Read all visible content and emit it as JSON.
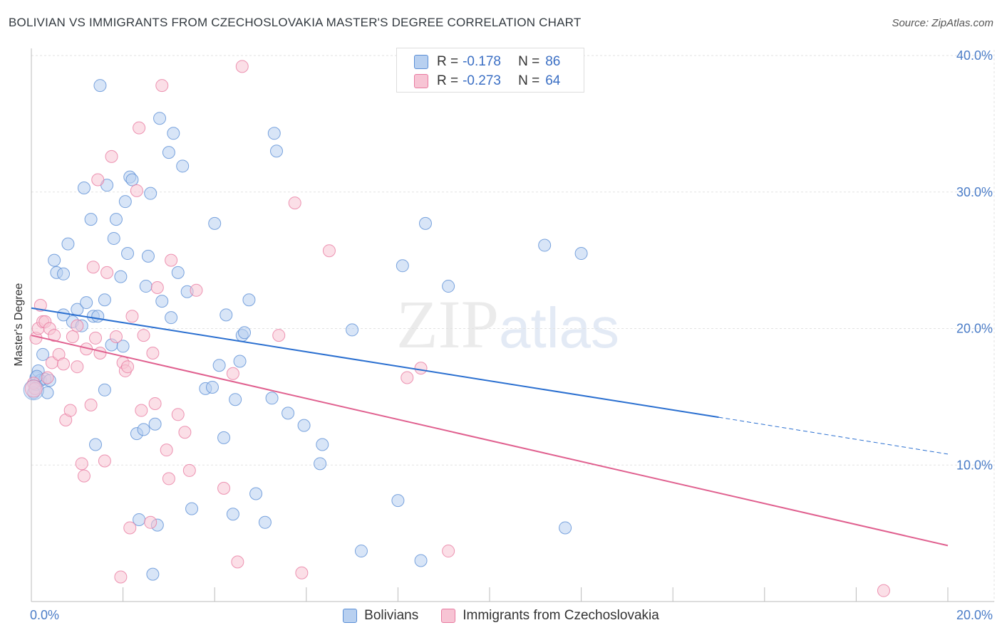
{
  "title": "BOLIVIAN VS IMMIGRANTS FROM CZECHOSLOVAKIA MASTER'S DEGREE CORRELATION CHART",
  "source": "Source: ZipAtlas.com",
  "watermark": {
    "zip": "ZIP",
    "atlas": "atlas"
  },
  "colors": {
    "blue": "#5b8fd6",
    "blue_fill": "#b8d0f0",
    "blue_line": "#2a6fd0",
    "pink": "#e87aa0",
    "pink_fill": "#f7c4d4",
    "pink_line": "#e0608f",
    "grid": "#e2e2e2",
    "tick_label": "#4a7cc7"
  },
  "legend": {
    "rows": [
      {
        "r_label": "R =",
        "r_value": "-0.178",
        "n_label": "N =",
        "n_value": "86"
      },
      {
        "r_label": "R =",
        "r_value": "-0.273",
        "n_label": "N =",
        "n_value": "64"
      }
    ]
  },
  "bottom_legend": [
    "Bolivians",
    "Immigrants from Czechoslovakia"
  ],
  "chart_data": {
    "type": "scatter",
    "title": "BOLIVIAN VS IMMIGRANTS FROM CZECHOSLOVAKIA MASTER'S DEGREE CORRELATION CHART",
    "xlabel": "",
    "ylabel": "Master's Degree",
    "xlim": [
      0,
      20
    ],
    "ylim": [
      0,
      40
    ],
    "x_tick_labels": [
      "0.0%",
      "20.0%"
    ],
    "y_ticks": [
      10,
      20,
      30,
      40
    ],
    "y_tick_labels": [
      "10.0%",
      "20.0%",
      "30.0%",
      "40.0%"
    ],
    "grid": true,
    "series": [
      {
        "name": "Bolivians",
        "trend": {
          "x": [
            0,
            15
          ],
          "y": [
            21.5,
            13.5
          ],
          "dashed_to": [
            20,
            10.8
          ]
        },
        "points": [
          [
            0.1,
            15.9
          ],
          [
            0.1,
            16.4
          ],
          [
            0.15,
            16.9
          ],
          [
            0.2,
            16.2
          ],
          [
            0.25,
            18.1
          ],
          [
            0.3,
            16.3
          ],
          [
            0.35,
            15.3
          ],
          [
            0.4,
            16.2
          ],
          [
            0.5,
            25
          ],
          [
            0.55,
            24.1
          ],
          [
            0.7,
            24
          ],
          [
            0.7,
            21
          ],
          [
            0.8,
            26.2
          ],
          [
            0.9,
            20.5
          ],
          [
            1,
            21.4
          ],
          [
            1.1,
            20.2
          ],
          [
            1.15,
            30.3
          ],
          [
            1.2,
            21.9
          ],
          [
            1.3,
            28
          ],
          [
            1.35,
            20.9
          ],
          [
            1.4,
            11.5
          ],
          [
            1.45,
            20.9
          ],
          [
            1.5,
            37.8
          ],
          [
            1.6,
            22.1
          ],
          [
            1.6,
            15.5
          ],
          [
            1.65,
            30.5
          ],
          [
            1.75,
            18.8
          ],
          [
            1.8,
            26.6
          ],
          [
            1.85,
            28
          ],
          [
            1.95,
            23.8
          ],
          [
            2,
            18.7
          ],
          [
            2.05,
            29.3
          ],
          [
            2.1,
            25.5
          ],
          [
            2.15,
            31.1
          ],
          [
            2.2,
            30.9
          ],
          [
            2.3,
            12.3
          ],
          [
            2.35,
            6
          ],
          [
            2.45,
            12.6
          ],
          [
            2.5,
            23.1
          ],
          [
            2.55,
            25.3
          ],
          [
            2.6,
            29.9
          ],
          [
            2.65,
            2
          ],
          [
            2.7,
            13
          ],
          [
            2.75,
            5.6
          ],
          [
            2.8,
            35.4
          ],
          [
            2.85,
            22
          ],
          [
            3,
            32.9
          ],
          [
            3.05,
            20.8
          ],
          [
            3.1,
            34.3
          ],
          [
            3.2,
            24.1
          ],
          [
            3.3,
            31.9
          ],
          [
            3.4,
            22.7
          ],
          [
            3.5,
            6.8
          ],
          [
            3.8,
            15.6
          ],
          [
            3.95,
            15.7
          ],
          [
            4,
            27.7
          ],
          [
            4.1,
            17.3
          ],
          [
            4.2,
            12
          ],
          [
            4.25,
            21
          ],
          [
            4.4,
            6.4
          ],
          [
            4.45,
            14.8
          ],
          [
            4.55,
            17.6
          ],
          [
            4.6,
            19.5
          ],
          [
            4.65,
            19.7
          ],
          [
            4.75,
            22.1
          ],
          [
            4.9,
            7.9
          ],
          [
            5.1,
            5.8
          ],
          [
            5.25,
            14.9
          ],
          [
            5.3,
            34.3
          ],
          [
            5.35,
            33
          ],
          [
            5.6,
            13.8
          ],
          [
            5.95,
            12.9
          ],
          [
            6.3,
            10.1
          ],
          [
            6.35,
            11.5
          ],
          [
            7,
            19.9
          ],
          [
            7.2,
            3.7
          ],
          [
            8,
            7.4
          ],
          [
            8.1,
            24.6
          ],
          [
            8.5,
            3
          ],
          [
            8.6,
            27.7
          ],
          [
            9.1,
            23.1
          ],
          [
            11.2,
            26.1
          ],
          [
            11.65,
            5.4
          ],
          [
            12,
            25.5
          ],
          [
            0.05,
            15.3
          ],
          [
            0.12,
            16.5
          ]
        ]
      },
      {
        "name": "Immigrants from Czechoslovakia",
        "trend": {
          "x": [
            0,
            20
          ],
          "y": [
            19.5,
            4.1
          ]
        },
        "points": [
          [
            0.1,
            19.3
          ],
          [
            0.15,
            20
          ],
          [
            0.2,
            21.7
          ],
          [
            0.25,
            20.5
          ],
          [
            0.3,
            20.5
          ],
          [
            0.35,
            16.4
          ],
          [
            0.4,
            20
          ],
          [
            0.45,
            17.5
          ],
          [
            0.5,
            19.5
          ],
          [
            0.6,
            18.1
          ],
          [
            0.7,
            17.4
          ],
          [
            0.75,
            13.3
          ],
          [
            0.85,
            14
          ],
          [
            0.9,
            19.4
          ],
          [
            1,
            17.2
          ],
          [
            1.1,
            10.1
          ],
          [
            1.15,
            9.2
          ],
          [
            1.2,
            18.5
          ],
          [
            1.3,
            14.4
          ],
          [
            1.35,
            24.5
          ],
          [
            1.4,
            19.3
          ],
          [
            1.45,
            30.9
          ],
          [
            1.5,
            18.2
          ],
          [
            1.6,
            10.3
          ],
          [
            1.65,
            24.1
          ],
          [
            1.75,
            32.6
          ],
          [
            1.85,
            19.4
          ],
          [
            1.95,
            1.8
          ],
          [
            2,
            17.5
          ],
          [
            2.05,
            16.9
          ],
          [
            2.15,
            5.4
          ],
          [
            2.2,
            20.9
          ],
          [
            2.3,
            30.1
          ],
          [
            2.35,
            34.7
          ],
          [
            2.4,
            14
          ],
          [
            2.45,
            19.5
          ],
          [
            2.6,
            5.8
          ],
          [
            2.65,
            18.2
          ],
          [
            2.7,
            14.5
          ],
          [
            2.75,
            23
          ],
          [
            2.85,
            37.8
          ],
          [
            2.95,
            11.1
          ],
          [
            3,
            9
          ],
          [
            3.05,
            25
          ],
          [
            3.2,
            13.7
          ],
          [
            3.35,
            12.4
          ],
          [
            3.45,
            9.6
          ],
          [
            3.6,
            22.8
          ],
          [
            4.2,
            8.3
          ],
          [
            4.4,
            16.7
          ],
          [
            4.5,
            2.9
          ],
          [
            4.6,
            39.2
          ],
          [
            5.4,
            19.5
          ],
          [
            5.75,
            29.2
          ],
          [
            5.9,
            2.1
          ],
          [
            6.5,
            25.7
          ],
          [
            8.2,
            16.4
          ],
          [
            8.5,
            17.1
          ],
          [
            9.1,
            3.7
          ],
          [
            18.6,
            0.8
          ],
          [
            0.05,
            16
          ],
          [
            0.08,
            15.6
          ],
          [
            1.0,
            20.2
          ],
          [
            2.1,
            17.2
          ]
        ]
      }
    ]
  }
}
